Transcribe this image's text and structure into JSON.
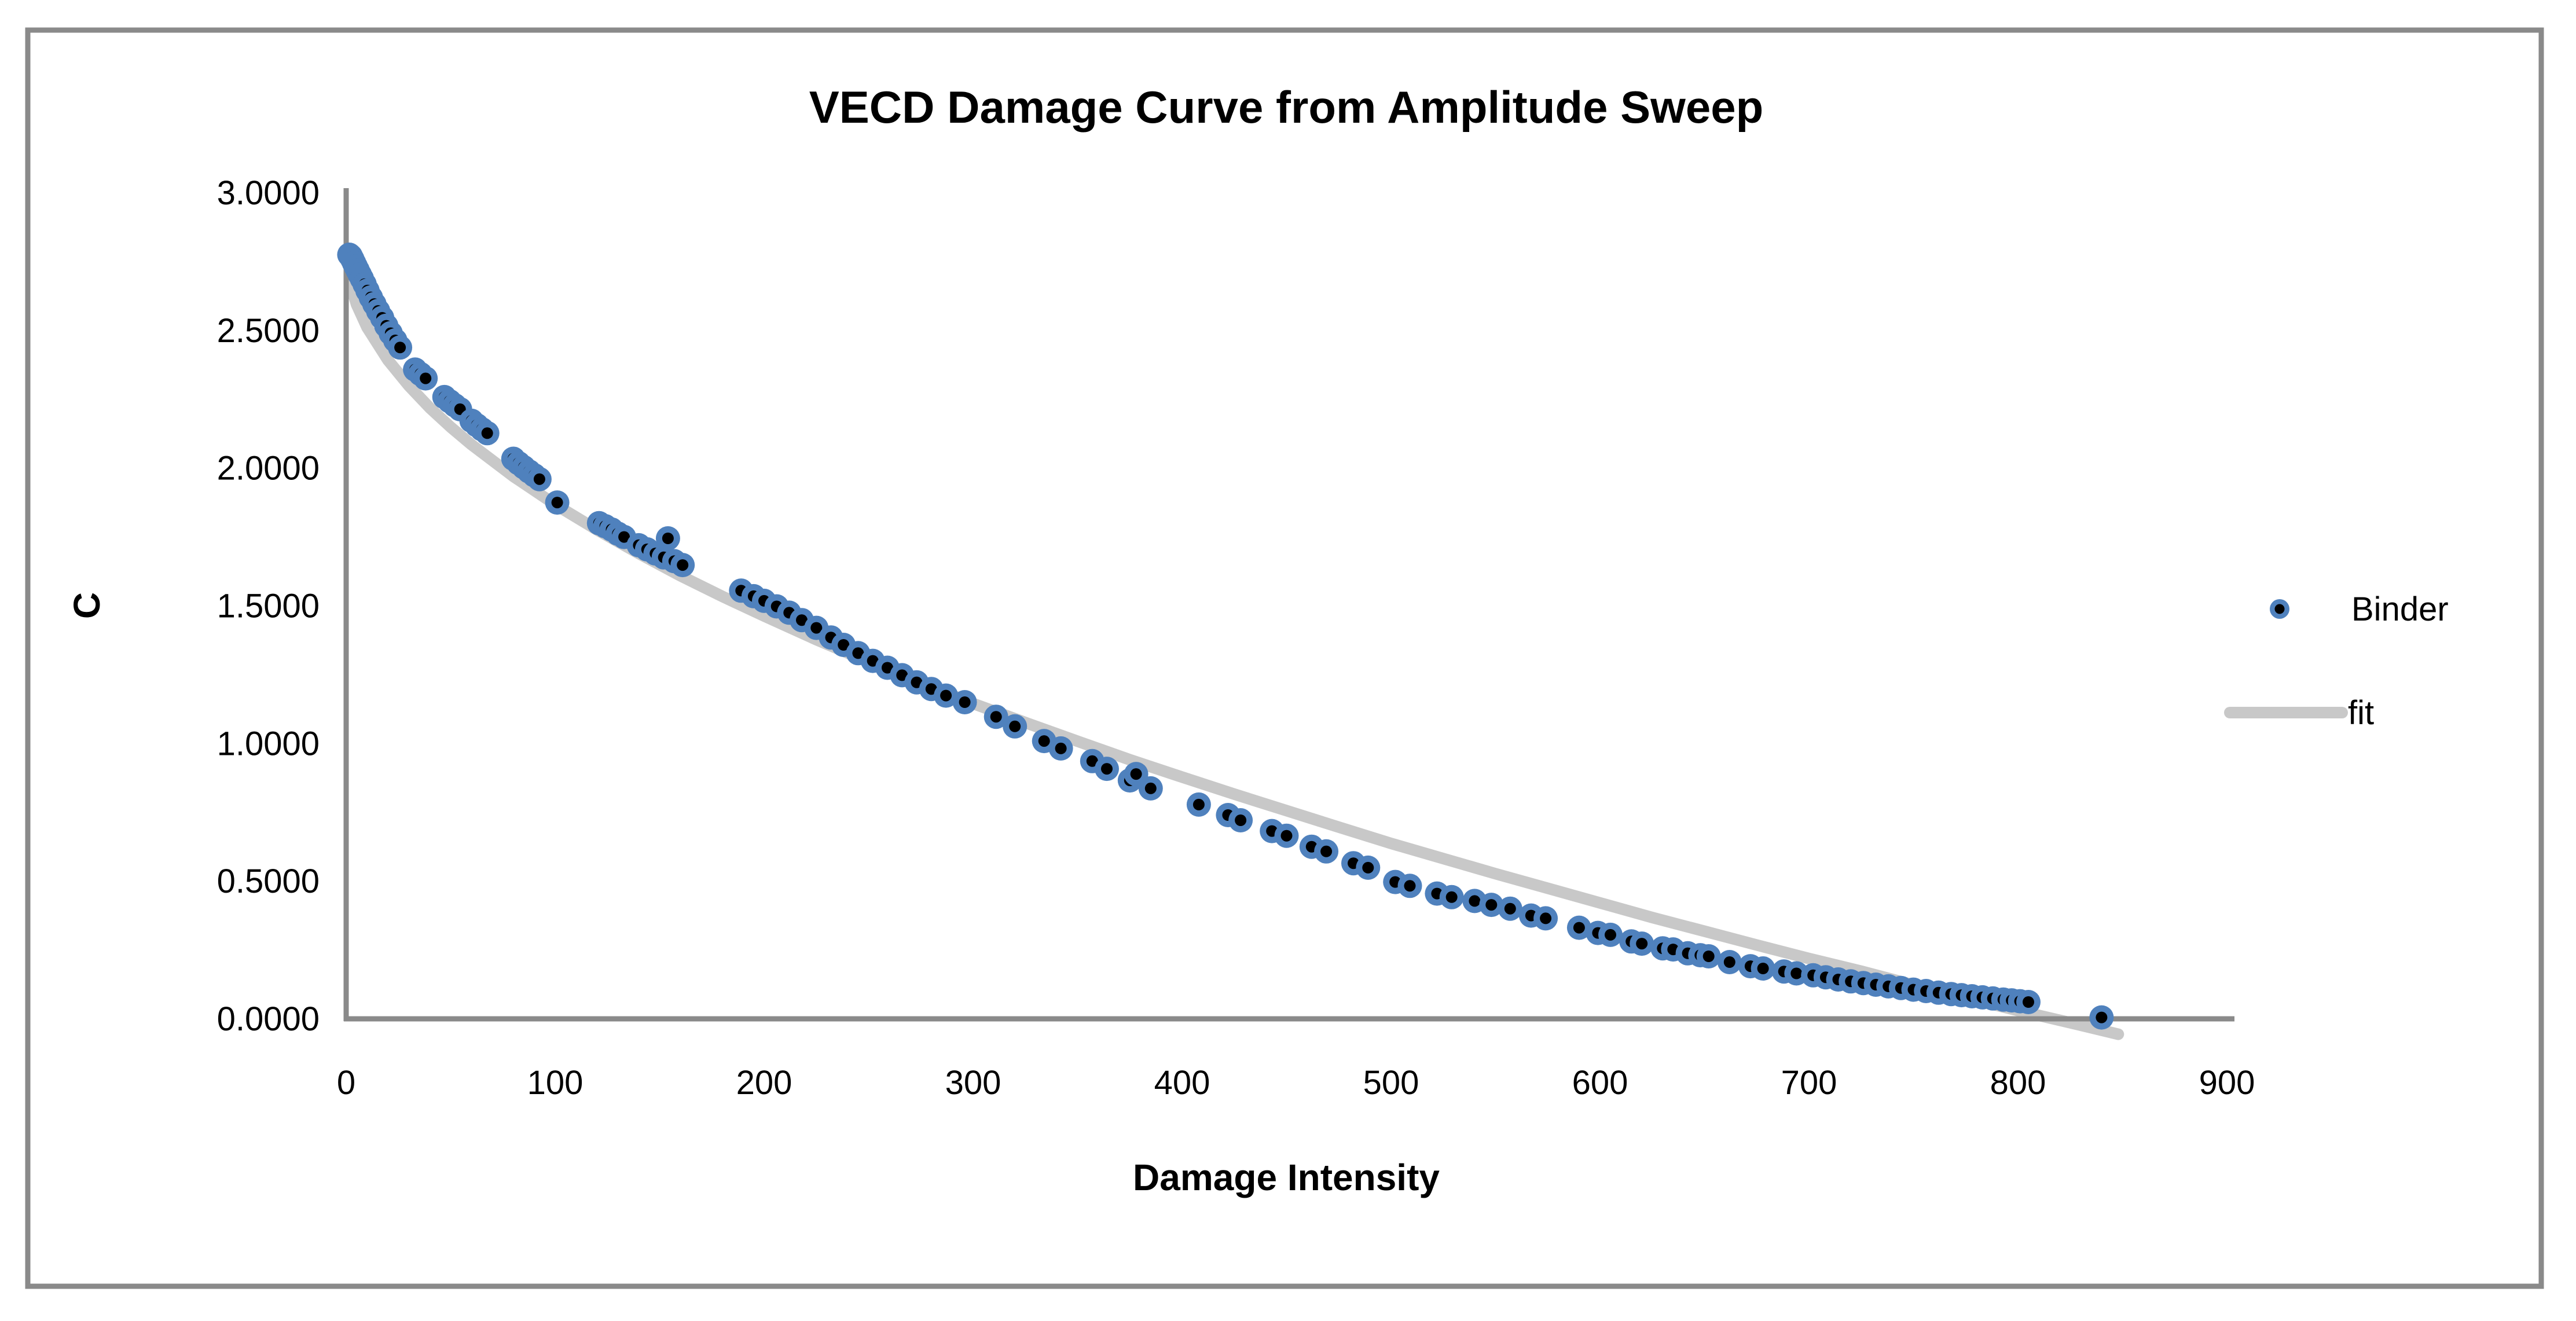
{
  "styles": {
    "background": "#ffffff",
    "border_color": "#8a8a8a",
    "axis_color": "#8a8a8a",
    "text_color": "#000000",
    "marker_fill": "#4f81bd",
    "marker_dot": "#000000",
    "fit_color": "#c8c8c8"
  },
  "chart_data": {
    "type": "scatter",
    "title": "VECD Damage Curve from Amplitude Sweep",
    "xlabel": "Damage Intensity",
    "ylabel": "C",
    "xlim": [
      0,
      900
    ],
    "ylim": [
      0.0,
      3.0
    ],
    "grid": false,
    "legend_position": "right-middle",
    "x_ticks": {
      "values": [
        0,
        100,
        200,
        300,
        400,
        500,
        600,
        700,
        800,
        900
      ],
      "labels": [
        "0",
        "100",
        "200",
        "300",
        "400",
        "500",
        "600",
        "700",
        "800",
        "900"
      ]
    },
    "y_ticks": {
      "values": [
        0,
        0.5,
        1.0,
        1.5,
        2.0,
        2.5,
        3.0
      ],
      "labels": [
        "0.0000",
        "0.5000",
        "1.0000",
        "1.5000",
        "2.0000",
        "2.5000",
        "3.0000"
      ]
    },
    "series": [
      {
        "name": "Binder",
        "type": "scatter",
        "marker": "circle-with-dot",
        "marker_fill": "#4f81bd",
        "marker_dot": "#000000",
        "points": [
          [
            1.5,
            2.775
          ],
          [
            2.2,
            2.77
          ],
          [
            3.0,
            2.758
          ],
          [
            3.8,
            2.745
          ],
          [
            4.6,
            2.732
          ],
          [
            5.5,
            2.718
          ],
          [
            6.5,
            2.703
          ],
          [
            7.5,
            2.688
          ],
          [
            8.8,
            2.668
          ],
          [
            10.2,
            2.645
          ],
          [
            11.8,
            2.62
          ],
          [
            13.5,
            2.596
          ],
          [
            15.3,
            2.571
          ],
          [
            17.2,
            2.546
          ],
          [
            19.2,
            2.517
          ],
          [
            21.3,
            2.49
          ],
          [
            23.5,
            2.464
          ],
          [
            25.8,
            2.438
          ],
          [
            33,
            2.358
          ],
          [
            35.5,
            2.342
          ],
          [
            38,
            2.326
          ],
          [
            47,
            2.258
          ],
          [
            49.5,
            2.243
          ],
          [
            52,
            2.228
          ],
          [
            54.5,
            2.214
          ],
          [
            60,
            2.172
          ],
          [
            62.5,
            2.156
          ],
          [
            65,
            2.141
          ],
          [
            67.5,
            2.127
          ],
          [
            80,
            2.034
          ],
          [
            82.5,
            2.018
          ],
          [
            85,
            2.003
          ],
          [
            87.5,
            1.988
          ],
          [
            90,
            1.974
          ],
          [
            92.5,
            1.96
          ],
          [
            101,
            1.875
          ],
          [
            121,
            1.8
          ],
          [
            124,
            1.789
          ],
          [
            127,
            1.777
          ],
          [
            130,
            1.762
          ],
          [
            133,
            1.75
          ],
          [
            140,
            1.72
          ],
          [
            144,
            1.705
          ],
          [
            148,
            1.69
          ],
          [
            152,
            1.676
          ],
          [
            154,
            1.745
          ],
          [
            157,
            1.662
          ],
          [
            161,
            1.648
          ],
          [
            189,
            1.555
          ],
          [
            195,
            1.535
          ],
          [
            200,
            1.518
          ],
          [
            206,
            1.498
          ],
          [
            212,
            1.475
          ],
          [
            218,
            1.448
          ],
          [
            225,
            1.42
          ],
          [
            232,
            1.385
          ],
          [
            238,
            1.358
          ],
          [
            245,
            1.328
          ],
          [
            252,
            1.3
          ],
          [
            259,
            1.275
          ],
          [
            266,
            1.248
          ],
          [
            273,
            1.222
          ],
          [
            280,
            1.198
          ],
          [
            287,
            1.174
          ],
          [
            296,
            1.15
          ],
          [
            311,
            1.097
          ],
          [
            320,
            1.062
          ],
          [
            334,
            1.009
          ],
          [
            342,
            0.982
          ],
          [
            357,
            0.936
          ],
          [
            364,
            0.908
          ],
          [
            375,
            0.866
          ],
          [
            378,
            0.889
          ],
          [
            385,
            0.837
          ],
          [
            408,
            0.778
          ],
          [
            422,
            0.74
          ],
          [
            428,
            0.721
          ],
          [
            443,
            0.682
          ],
          [
            450,
            0.665
          ],
          [
            462,
            0.625
          ],
          [
            469,
            0.608
          ],
          [
            482,
            0.565
          ],
          [
            489,
            0.549
          ],
          [
            502,
            0.497
          ],
          [
            509,
            0.483
          ],
          [
            522,
            0.455
          ],
          [
            529,
            0.442
          ],
          [
            540,
            0.428
          ],
          [
            548,
            0.414
          ],
          [
            557,
            0.4
          ],
          [
            567,
            0.375
          ],
          [
            574,
            0.365
          ],
          [
            590,
            0.331
          ],
          [
            599,
            0.312
          ],
          [
            605,
            0.305
          ],
          [
            615,
            0.281
          ],
          [
            620,
            0.273
          ],
          [
            630,
            0.256
          ],
          [
            635,
            0.252
          ],
          [
            642,
            0.238
          ],
          [
            648,
            0.231
          ],
          [
            652,
            0.227
          ],
          [
            662,
            0.206
          ],
          [
            672,
            0.191
          ],
          [
            678,
            0.183
          ],
          [
            688,
            0.172
          ],
          [
            694,
            0.165
          ],
          [
            702,
            0.158
          ],
          [
            708,
            0.151
          ],
          [
            714,
            0.143
          ],
          [
            720,
            0.136
          ],
          [
            726,
            0.13
          ],
          [
            732,
            0.124
          ],
          [
            738,
            0.118
          ],
          [
            744,
            0.112
          ],
          [
            750,
            0.106
          ],
          [
            756,
            0.101
          ],
          [
            762,
            0.095
          ],
          [
            768,
            0.09
          ],
          [
            773,
            0.086
          ],
          [
            778,
            0.082
          ],
          [
            783,
            0.078
          ],
          [
            788,
            0.074
          ],
          [
            793,
            0.07
          ],
          [
            797,
            0.067
          ],
          [
            801,
            0.064
          ],
          [
            805,
            0.061
          ],
          [
            840,
            0.005
          ]
        ]
      },
      {
        "name": "fit",
        "type": "line",
        "color": "#c8c8c8",
        "width": 20,
        "points": [
          [
            1.5,
            2.68
          ],
          [
            5,
            2.594
          ],
          [
            10,
            2.511
          ],
          [
            20,
            2.392
          ],
          [
            30,
            2.299
          ],
          [
            40,
            2.219
          ],
          [
            50,
            2.149
          ],
          [
            60,
            2.085
          ],
          [
            80,
            1.97
          ],
          [
            100,
            1.868
          ],
          [
            120,
            1.776
          ],
          [
            140,
            1.69
          ],
          [
            160,
            1.609
          ],
          [
            180,
            1.534
          ],
          [
            200,
            1.463
          ],
          [
            225,
            1.377
          ],
          [
            250,
            1.297
          ],
          [
            275,
            1.221
          ],
          [
            300,
            1.145
          ],
          [
            325,
            1.076
          ],
          [
            350,
            1.008
          ],
          [
            375,
            0.941
          ],
          [
            400,
            0.878
          ],
          [
            425,
            0.816
          ],
          [
            450,
            0.756
          ],
          [
            475,
            0.696
          ],
          [
            500,
            0.637
          ],
          [
            525,
            0.582
          ],
          [
            550,
            0.527
          ],
          [
            575,
            0.474
          ],
          [
            600,
            0.421
          ],
          [
            625,
            0.368
          ],
          [
            650,
            0.318
          ],
          [
            675,
            0.268
          ],
          [
            700,
            0.219
          ],
          [
            725,
            0.173
          ],
          [
            750,
            0.123
          ],
          [
            775,
            0.077
          ],
          [
            800,
            0.03
          ],
          [
            825,
            -0.014
          ],
          [
            848,
            -0.056
          ]
        ]
      }
    ]
  }
}
